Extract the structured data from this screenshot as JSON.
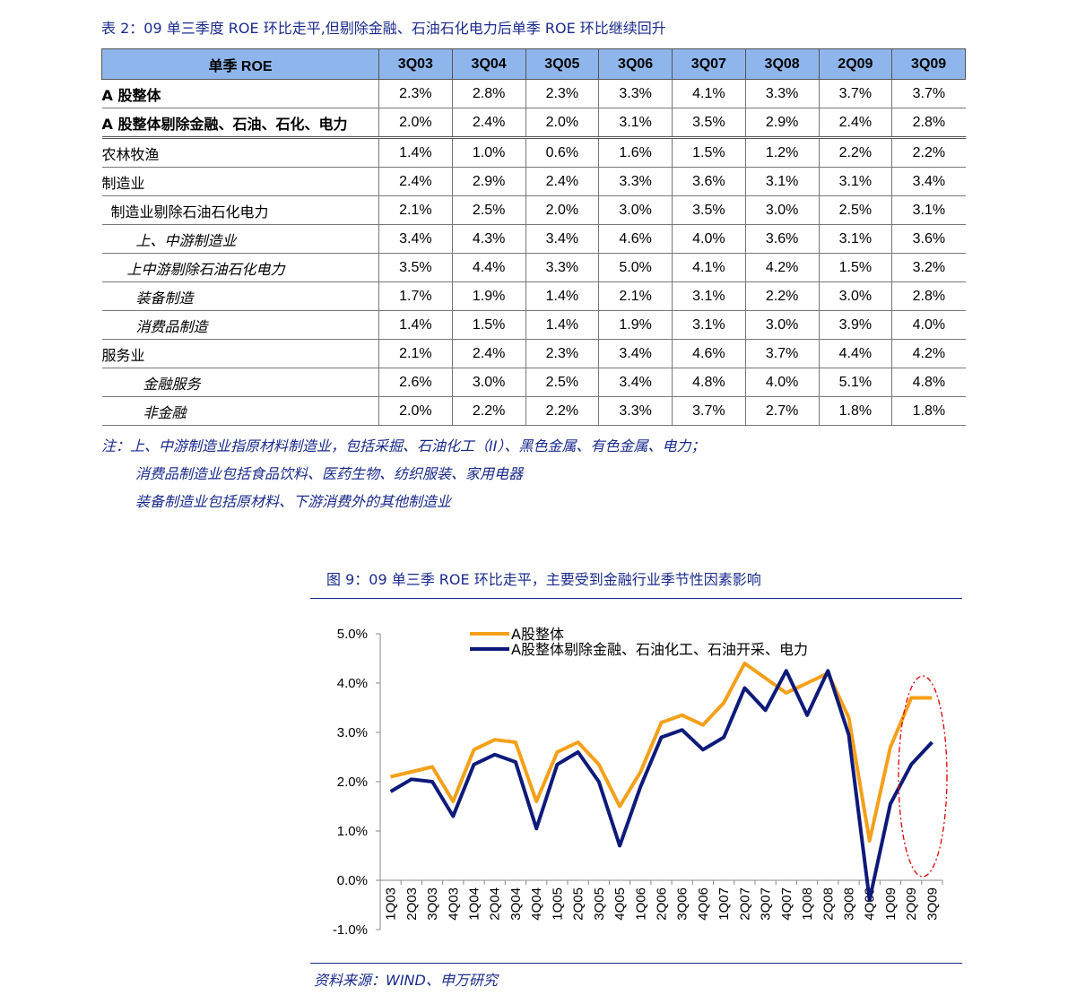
{
  "table": {
    "title": "表 2：09 单三季度 ROE 环比走平,但剔除金融、石油石化电力后单季 ROE 环比继续回升",
    "header": [
      "单季 ROE",
      "3Q03",
      "3Q04",
      "3Q05",
      "3Q06",
      "3Q07",
      "3Q08",
      "2Q09",
      "3Q09"
    ],
    "rows": [
      {
        "label": "A 股整体",
        "values": [
          "2.3%",
          "2.8%",
          "2.3%",
          "3.3%",
          "4.1%",
          "3.3%",
          "3.7%",
          "3.7%"
        ]
      },
      {
        "label": "A 股整体剔除金融、石油、石化、电力",
        "values": [
          "2.0%",
          "2.4%",
          "2.0%",
          "3.1%",
          "3.5%",
          "2.9%",
          "2.4%",
          "2.8%"
        ]
      },
      {
        "label": "农林牧渔",
        "values": [
          "1.4%",
          "1.0%",
          "0.6%",
          "1.6%",
          "1.5%",
          "1.2%",
          "2.2%",
          "2.2%"
        ]
      },
      {
        "label": "制造业",
        "values": [
          "2.4%",
          "2.9%",
          "2.4%",
          "3.3%",
          "3.6%",
          "3.1%",
          "3.1%",
          "3.4%"
        ]
      },
      {
        "label": "制造业剔除石油石化电力",
        "values": [
          "2.1%",
          "2.5%",
          "2.0%",
          "3.0%",
          "3.5%",
          "3.0%",
          "2.5%",
          "3.1%"
        ]
      },
      {
        "label": "上、中游制造业",
        "values": [
          "3.4%",
          "4.3%",
          "3.4%",
          "4.6%",
          "4.0%",
          "3.6%",
          "3.1%",
          "3.6%"
        ]
      },
      {
        "label": "上中游剔除石油石化电力",
        "values": [
          "3.5%",
          "4.4%",
          "3.3%",
          "5.0%",
          "4.1%",
          "4.2%",
          "1.5%",
          "3.2%"
        ]
      },
      {
        "label": "装备制造",
        "values": [
          "1.7%",
          "1.9%",
          "1.4%",
          "2.1%",
          "3.1%",
          "2.2%",
          "3.0%",
          "2.8%"
        ]
      },
      {
        "label": "消费品制造",
        "values": [
          "1.4%",
          "1.5%",
          "1.4%",
          "1.9%",
          "3.1%",
          "3.0%",
          "3.9%",
          "4.0%"
        ]
      },
      {
        "label": "服务业",
        "values": [
          "2.1%",
          "2.4%",
          "2.3%",
          "3.4%",
          "4.6%",
          "3.7%",
          "4.4%",
          "4.2%"
        ]
      },
      {
        "label": "金融服务",
        "values": [
          "2.6%",
          "3.0%",
          "2.5%",
          "3.4%",
          "4.8%",
          "4.0%",
          "5.1%",
          "4.8%"
        ]
      },
      {
        "label": "非金融",
        "values": [
          "2.0%",
          "2.2%",
          "2.2%",
          "3.3%",
          "3.7%",
          "2.7%",
          "1.8%",
          "1.8%"
        ]
      }
    ]
  },
  "notes": [
    "注：上、中游制造业指原材料制造业，包括采掘、石油化工（II）、黑色金属、有色金属、电力；",
    "消费品制造业包括食品饮料、医药生物、纺织服装、家用电器",
    "装备制造业包括原材料、下游消费外的其他制造业"
  ],
  "figure": {
    "title": "图 9：09 单三季 ROE 环比走平，主要受到金融行业季节性因素影响",
    "source": "资料来源：WIND、申万研究"
  },
  "chart_data": {
    "type": "line",
    "x": [
      "1Q03",
      "2Q03",
      "3Q03",
      "4Q03",
      "1Q04",
      "2Q04",
      "3Q04",
      "4Q04",
      "1Q05",
      "2Q05",
      "3Q05",
      "4Q05",
      "1Q06",
      "2Q06",
      "3Q06",
      "4Q06",
      "1Q07",
      "2Q07",
      "3Q07",
      "4Q07",
      "1Q08",
      "2Q08",
      "3Q08",
      "4Q08",
      "1Q09",
      "2Q09",
      "3Q09"
    ],
    "series": [
      {
        "name": "A股整体",
        "color": "#f5a01a",
        "values": [
          2.1,
          2.2,
          2.3,
          1.6,
          2.65,
          2.85,
          2.8,
          1.6,
          2.6,
          2.8,
          2.35,
          1.5,
          2.2,
          3.2,
          3.35,
          3.15,
          3.6,
          4.4,
          4.1,
          3.8,
          4.0,
          4.2,
          3.3,
          0.8,
          2.7,
          3.7,
          3.7
        ]
      },
      {
        "name": "A股整体剔除金融、石油化工、石油开采、电力",
        "color": "#0e1a7a",
        "values": [
          1.8,
          2.05,
          2.0,
          1.3,
          2.35,
          2.55,
          2.4,
          1.05,
          2.35,
          2.6,
          2.0,
          0.7,
          1.9,
          2.9,
          3.05,
          2.65,
          2.9,
          3.9,
          3.45,
          4.25,
          3.35,
          4.25,
          2.95,
          -0.4,
          1.55,
          2.35,
          2.8
        ]
      }
    ],
    "yticks": [
      "5.0%",
      "4.0%",
      "3.0%",
      "2.0%",
      "1.0%",
      "0.0%",
      "-1.0%"
    ],
    "ylim": [
      -1.0,
      5.0
    ],
    "legend_placement": "top-left"
  }
}
